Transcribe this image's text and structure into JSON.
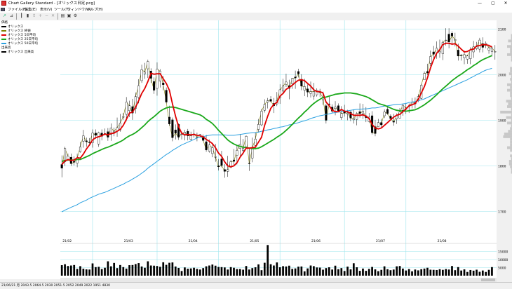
{
  "window": {
    "title": "Chart Gallery Standard - [オリックス日足.pcg]",
    "minimize": "—",
    "maximize": "▢",
    "close": "✕"
  },
  "menu": [
    "ファイル(F)",
    "編集(E)",
    "表示(V)",
    "ツール(T)",
    "ウィンドウ(W)",
    "ヘルプ(H)"
  ],
  "legend": {
    "price_panel_label": "価格",
    "volume_panel_label": "出来高",
    "price_items": [
      {
        "label": "オリックス",
        "color": "#000000"
      },
      {
        "label": "オリックス 終値",
        "color": "#808000"
      },
      {
        "label": "オリックス 5日平均",
        "color": "#e00000"
      },
      {
        "label": "オリックス 25日平均",
        "color": "#1aa81a"
      },
      {
        "label": "オリックス 50日平均",
        "color": "#2aa0e0"
      }
    ],
    "volume_items": [
      {
        "label": "オリックス 出来高",
        "color": "#000000"
      }
    ]
  },
  "status": {
    "text": "21/06/21 月 2043.5 2064.5 2030 2051.5 2052 2049 2022 1951 4830"
  },
  "colors": {
    "grid": "#9ee6ee",
    "ma5": "#e00000",
    "ma25": "#1aa81a",
    "ma50": "#2aa0e0",
    "close": "#808000",
    "candle_up": "#ffffff",
    "candle_down": "#000000",
    "volume": "#000000"
  },
  "chart_data": {
    "type": "candlestick",
    "x_labels": [
      "21/02",
      "21/03",
      "21/04",
      "21/05",
      "21/06",
      "21/07",
      "21/08"
    ],
    "price_ticks": [
      "2100",
      "2000",
      "1900",
      "1800",
      "1700"
    ],
    "volume_ticks": [
      "15000",
      "10000",
      "5000"
    ],
    "ylim": [
      1630,
      2110
    ],
    "volume_max": 20000,
    "candles": [
      [
        1803,
        1823,
        1775,
        1795
      ],
      [
        1809,
        1842,
        1800,
        1838
      ],
      [
        1812,
        1827,
        1811,
        1821
      ],
      [
        1819,
        1827,
        1800,
        1805
      ],
      [
        1810,
        1821,
        1801,
        1808
      ],
      [
        1806,
        1827,
        1797,
        1817
      ],
      [
        1831,
        1853,
        1829,
        1842
      ],
      [
        1854,
        1879,
        1840,
        1866
      ],
      [
        1855,
        1862,
        1842,
        1853
      ],
      [
        1852,
        1861,
        1844,
        1851
      ],
      [
        1851,
        1880,
        1840,
        1872
      ],
      [
        1872,
        1880,
        1859,
        1867
      ],
      [
        1848,
        1875,
        1842,
        1873
      ],
      [
        1872,
        1880,
        1856,
        1865
      ],
      [
        1870,
        1882,
        1867,
        1871
      ],
      [
        1875,
        1883,
        1855,
        1863
      ],
      [
        1869,
        1893,
        1855,
        1883
      ],
      [
        1874,
        1884,
        1865,
        1876
      ],
      [
        1876,
        1906,
        1864,
        1884
      ],
      [
        1879,
        1914,
        1875,
        1894
      ],
      [
        1907,
        1916,
        1901,
        1908
      ],
      [
        1913,
        1951,
        1898,
        1940
      ],
      [
        1921,
        1943,
        1907,
        1932
      ],
      [
        1930,
        1947,
        1901,
        1916
      ],
      [
        1926,
        1961,
        1915,
        1952
      ],
      [
        1950,
        1990,
        1937,
        1976
      ],
      [
        1987,
        2022,
        1982,
        2011
      ],
      [
        2002,
        2026,
        1991,
        2006
      ],
      [
        2013,
        2033,
        1993,
        2029
      ],
      [
        2008,
        2014,
        1982,
        1992
      ],
      [
        1985,
        1994,
        1958,
        1966
      ],
      [
        1970,
        2027,
        1954,
        2012
      ],
      [
        1986,
        2012,
        1972,
        2008
      ],
      [
        1982,
        1997,
        1966,
        1978
      ],
      [
        1966,
        1972,
        1937,
        1940
      ],
      [
        1907,
        1932,
        1888,
        1892
      ],
      [
        1901,
        1906,
        1854,
        1862
      ],
      [
        1879,
        1891,
        1858,
        1872
      ],
      [
        1891,
        1893,
        1857,
        1863
      ],
      [
        1869,
        1875,
        1858,
        1870
      ],
      [
        1867,
        1879,
        1856,
        1874
      ],
      [
        1876,
        1881,
        1856,
        1866
      ],
      [
        1858,
        1875,
        1856,
        1866
      ],
      [
        1869,
        1880,
        1862,
        1870
      ],
      [
        1862,
        1873,
        1854,
        1863
      ],
      [
        1866,
        1870,
        1862,
        1869
      ],
      [
        1862,
        1869,
        1854,
        1856
      ],
      [
        1853,
        1868,
        1831,
        1835
      ],
      [
        1832,
        1858,
        1829,
        1846
      ],
      [
        1827,
        1848,
        1819,
        1840
      ],
      [
        1820,
        1848,
        1809,
        1820
      ],
      [
        1800,
        1815,
        1790,
        1798
      ],
      [
        1815,
        1833,
        1797,
        1801
      ],
      [
        1792,
        1804,
        1774,
        1788
      ],
      [
        1788,
        1822,
        1776,
        1792
      ],
      [
        1797,
        1813,
        1795,
        1809
      ],
      [
        1813,
        1837,
        1802,
        1810
      ],
      [
        1823,
        1845,
        1803,
        1834
      ],
      [
        1838,
        1870,
        1822,
        1848
      ],
      [
        1834,
        1859,
        1825,
        1838
      ],
      [
        1842,
        1867,
        1838,
        1865
      ],
      [
        1806,
        1840,
        1789,
        1805
      ],
      [
        1817,
        1862,
        1808,
        1840
      ],
      [
        1845,
        1874,
        1836,
        1859
      ],
      [
        1880,
        1903,
        1873,
        1891
      ],
      [
        1890,
        1925,
        1887,
        1920
      ],
      [
        1922,
        1946,
        1917,
        1935
      ],
      [
        1940,
        1949,
        1926,
        1943
      ],
      [
        1946,
        1953,
        1940,
        1942
      ],
      [
        1937,
        1949,
        1916,
        1932
      ],
      [
        1936,
        1962,
        1931,
        1943
      ],
      [
        1949,
        1979,
        1936,
        1967
      ],
      [
        1964,
        1991,
        1958,
        1975
      ],
      [
        1979,
        2002,
        1973,
        1984
      ],
      [
        1976,
        1989,
        1946,
        1970
      ],
      [
        1980,
        1993,
        1969,
        1992
      ],
      [
        1995,
        2009,
        1969,
        1993
      ],
      [
        2007,
        2013,
        1994,
        2002
      ],
      [
        1990,
        2001,
        1966,
        1975
      ],
      [
        1966,
        1991,
        1953,
        1974
      ],
      [
        1969,
        1979,
        1951,
        1962
      ],
      [
        1959,
        1985,
        1950,
        1963
      ],
      [
        1953,
        1982,
        1945,
        1963
      ],
      [
        1956,
        1970,
        1952,
        1966
      ],
      [
        1963,
        1969,
        1951,
        1961
      ],
      [
        1945,
        1963,
        1934,
        1949
      ],
      [
        1932,
        1936,
        1893,
        1900
      ],
      [
        1936,
        1952,
        1933,
        1935
      ],
      [
        1929,
        1935,
        1916,
        1920
      ],
      [
        1926,
        1942,
        1911,
        1929
      ],
      [
        1932,
        1937,
        1918,
        1921
      ],
      [
        1906,
        1931,
        1901,
        1915
      ],
      [
        1919,
        1934,
        1908,
        1916
      ],
      [
        1914,
        1923,
        1900,
        1916
      ],
      [
        1918,
        1920,
        1898,
        1905
      ],
      [
        1901,
        1924,
        1893,
        1904
      ],
      [
        1902,
        1918,
        1889,
        1915
      ],
      [
        1919,
        1937,
        1906,
        1915
      ],
      [
        1914,
        1936,
        1903,
        1920
      ],
      [
        1910,
        1929,
        1896,
        1906
      ],
      [
        1897,
        1916,
        1895,
        1907
      ],
      [
        1910,
        1920,
        1869,
        1873
      ],
      [
        1886,
        1901,
        1865,
        1871
      ],
      [
        1886,
        1903,
        1885,
        1895
      ],
      [
        1895,
        1903,
        1883,
        1890
      ],
      [
        1910,
        1924,
        1905,
        1918
      ],
      [
        1924,
        1930,
        1912,
        1915
      ],
      [
        1909,
        1913,
        1903,
        1904
      ],
      [
        1898,
        1914,
        1888,
        1896
      ],
      [
        1903,
        1915,
        1892,
        1910
      ],
      [
        1905,
        1927,
        1904,
        1918
      ],
      [
        1922,
        1936,
        1910,
        1933
      ],
      [
        1924,
        1938,
        1914,
        1927
      ],
      [
        1930,
        1937,
        1916,
        1931
      ],
      [
        1934,
        1949,
        1926,
        1940
      ],
      [
        1939,
        1950,
        1926,
        1936
      ],
      [
        1943,
        1957,
        1940,
        1952
      ],
      [
        1948,
        1980,
        1946,
        1977
      ],
      [
        1989,
        2007,
        1989,
        2003
      ],
      [
        2007,
        2024,
        1999,
        2004
      ],
      [
        2025,
        2053,
        2019,
        2040
      ],
      [
        2050,
        2063,
        2037,
        2045
      ],
      [
        2048,
        2073,
        2035,
        2058
      ],
      [
        2048,
        2077,
        2037,
        2051
      ],
      [
        2046,
        2075,
        2032,
        2071
      ],
      [
        2076,
        2102,
        2064,
        2076
      ],
      [
        2089,
        2102,
        2058,
        2072
      ],
      [
        2091,
        2095,
        2065,
        2085
      ],
      [
        2075,
        2092,
        2062,
        2077
      ],
      [
        2054,
        2068,
        2031,
        2041
      ],
      [
        2043,
        2045,
        2031,
        2042
      ],
      [
        2037,
        2053,
        2023,
        2044
      ],
      [
        2034,
        2044,
        2024,
        2041
      ],
      [
        2035,
        2060,
        2023,
        2054
      ],
      [
        2050,
        2074,
        2037,
        2061
      ],
      [
        2057,
        2072,
        2054,
        2061
      ],
      [
        2056,
        2081,
        2049,
        2076
      ],
      [
        2068,
        2082,
        2049,
        2060
      ],
      [
        2064,
        2073,
        2058,
        2069
      ],
      [
        2054,
        2066,
        2046,
        2059
      ],
      [
        2051,
        2062,
        2040,
        2059
      ],
      [
        2051,
        2065,
        2033,
        2051
      ]
    ],
    "ma5": [
      1803,
      1811,
      1814,
      1812,
      1813,
      1818,
      1817,
      1826,
      1837,
      1846,
      1857,
      1862,
      1864,
      1866,
      1870,
      1868,
      1871,
      1872,
      1876,
      1880,
      1889,
      1902,
      1916,
      1918,
      1929,
      1943,
      1959,
      1970,
      1985,
      2003,
      2001,
      2002,
      2002,
      1991,
      1981,
      1966,
      1936,
      1909,
      1886,
      1872,
      1868,
      1869,
      1868,
      1869,
      1867,
      1866,
      1864,
      1858,
      1854,
      1849,
      1840,
      1828,
      1821,
      1809,
      1800,
      1798,
      1800,
      1807,
      1819,
      1828,
      1839,
      1839,
      1840,
      1841,
      1852,
      1863,
      1889,
      1909,
      1926,
      1935,
      1939,
      1953,
      1959,
      1968,
      1972,
      1977,
      1983,
      1988,
      1989,
      1987,
      1981,
      1975,
      1967,
      1963,
      1963,
      1960,
      1940,
      1932,
      1922,
      1919,
      1919,
      1924,
      1920,
      1919,
      1915,
      1911,
      1911,
      1911,
      1912,
      1909,
      1904,
      1891,
      1883,
      1881,
      1883,
      1889,
      1895,
      1901,
      1907,
      1911,
      1913,
      1919,
      1925,
      1932,
      1934,
      1937,
      1946,
      1960,
      1974,
      1993,
      2015,
      2033,
      2047,
      2055,
      2066,
      2069,
      2069,
      2067,
      2068,
      2063,
      2056,
      2050,
      2051,
      2055,
      2056,
      2063,
      2064,
      2066,
      2066,
      2064,
      2061
    ],
    "ma25": [
      1810,
      1812,
      1813,
      1813,
      1813,
      1814,
      1814,
      1817,
      1820,
      1823,
      1827,
      1830,
      1833,
      1836,
      1839,
      1841,
      1844,
      1847,
      1850,
      1853,
      1857,
      1862,
      1866,
      1869,
      1873,
      1878,
      1884,
      1890,
      1897,
      1903,
      1908,
      1914,
      1920,
      1924,
      1927,
      1929,
      1929,
      1928,
      1926,
      1924,
      1922,
      1920,
      1918,
      1916,
      1914,
      1912,
      1908,
      1902,
      1898,
      1893,
      1886,
      1878,
      1871,
      1864,
      1857,
      1852,
      1848,
      1845,
      1843,
      1841,
      1840,
      1839,
      1838,
      1838,
      1839,
      1842,
      1846,
      1850,
      1854,
      1858,
      1863,
      1867,
      1872,
      1878,
      1884,
      1891,
      1898,
      1905,
      1911,
      1918,
      1924,
      1931,
      1937,
      1942,
      1946,
      1950,
      1951,
      1953,
      1955,
      1957,
      1958,
      1959,
      1960,
      1960,
      1960,
      1959,
      1958,
      1956,
      1954,
      1952,
      1949,
      1945,
      1941,
      1937,
      1935,
      1933,
      1930,
      1927,
      1924,
      1922,
      1921,
      1920,
      1920,
      1921,
      1922,
      1923,
      1926,
      1930,
      1934,
      1939,
      1944,
      1950,
      1956,
      1963,
      1969,
      1975,
      1981,
      1987,
      1992,
      1997,
      2001,
      2006,
      2011,
      2015,
      2020,
      2024,
      2029,
      2033,
      2036,
      2039,
      2042
    ],
    "ma50": [
      1699,
      1703,
      1706,
      1709,
      1712,
      1715,
      1719,
      1722,
      1725,
      1729,
      1732,
      1735,
      1738,
      1740,
      1742,
      1745,
      1748,
      1751,
      1754,
      1757,
      1760,
      1764,
      1767,
      1771,
      1775,
      1779,
      1784,
      1789,
      1795,
      1800,
      1805,
      1810,
      1815,
      1820,
      1825,
      1829,
      1834,
      1838,
      1842,
      1846,
      1849,
      1852,
      1855,
      1858,
      1861,
      1863,
      1864,
      1866,
      1867,
      1868,
      1868,
      1868,
      1868,
      1868,
      1867,
      1867,
      1867,
      1868,
      1869,
      1870,
      1871,
      1872,
      1873,
      1873,
      1874,
      1876,
      1877,
      1879,
      1880,
      1882,
      1883,
      1885,
      1886,
      1888,
      1890,
      1891,
      1893,
      1895,
      1897,
      1899,
      1901,
      1904,
      1906,
      1908,
      1910,
      1911,
      1913,
      1914,
      1916,
      1917,
      1918,
      1919,
      1920,
      1921,
      1922,
      1923,
      1924,
      1924,
      1925,
      1925,
      1926,
      1927,
      1927,
      1928,
      1930,
      1931,
      1932,
      1933,
      1934,
      1935,
      1935,
      1936,
      1937,
      1939,
      1940,
      1941,
      1943,
      1945,
      1947,
      1950,
      1953,
      1956,
      1959,
      1962,
      1965,
      1968,
      1971,
      1974,
      1977,
      1980,
      1983,
      1986,
      1989,
      1993,
      1996,
      2000,
      2003,
      2007,
      2010,
      2012,
      2014
    ],
    "volume": [
      6500,
      7100,
      6000,
      6300,
      6600,
      4200,
      5900,
      4300,
      3900,
      3800,
      7600,
      5300,
      5500,
      4100,
      4900,
      8900,
      5800,
      7900,
      4700,
      6600,
      5300,
      4400,
      6500,
      6600,
      7200,
      7800,
      5700,
      4900,
      8900,
      6300,
      6200,
      6000,
      5500,
      8300,
      6700,
      8000,
      8200,
      5700,
      4800,
      2900,
      5100,
      4300,
      4500,
      4900,
      4200,
      3800,
      4700,
      5800,
      6300,
      6900,
      6200,
      5400,
      5300,
      5100,
      3800,
      5300,
      4900,
      4100,
      4100,
      3700,
      6000,
      3800,
      4700,
      5200,
      7000,
      3400,
      8000,
      19000,
      7100,
      6300,
      8200,
      5200,
      5900,
      5700,
      6200,
      4200,
      4500,
      5600,
      5700,
      2700,
      4500,
      6300,
      5900,
      5100,
      5000,
      3700,
      4700,
      5200,
      3800,
      6200,
      4000,
      4700,
      2900,
      5600,
      3900,
      7700,
      5200,
      3000,
      4400,
      3000,
      4200,
      5400,
      3900,
      2800,
      3600,
      5800,
      4000,
      3400,
      3800,
      5800,
      6000,
      4400,
      3200,
      4100,
      2700,
      3800,
      3300,
      4000,
      4400,
      4900,
      3700,
      3600,
      3500,
      4000,
      3600,
      4100,
      3800,
      6000,
      3400,
      5300,
      3200,
      3900,
      2300,
      3500,
      3100,
      3700,
      2400,
      3200,
      2300,
      3600,
      5300
    ]
  }
}
